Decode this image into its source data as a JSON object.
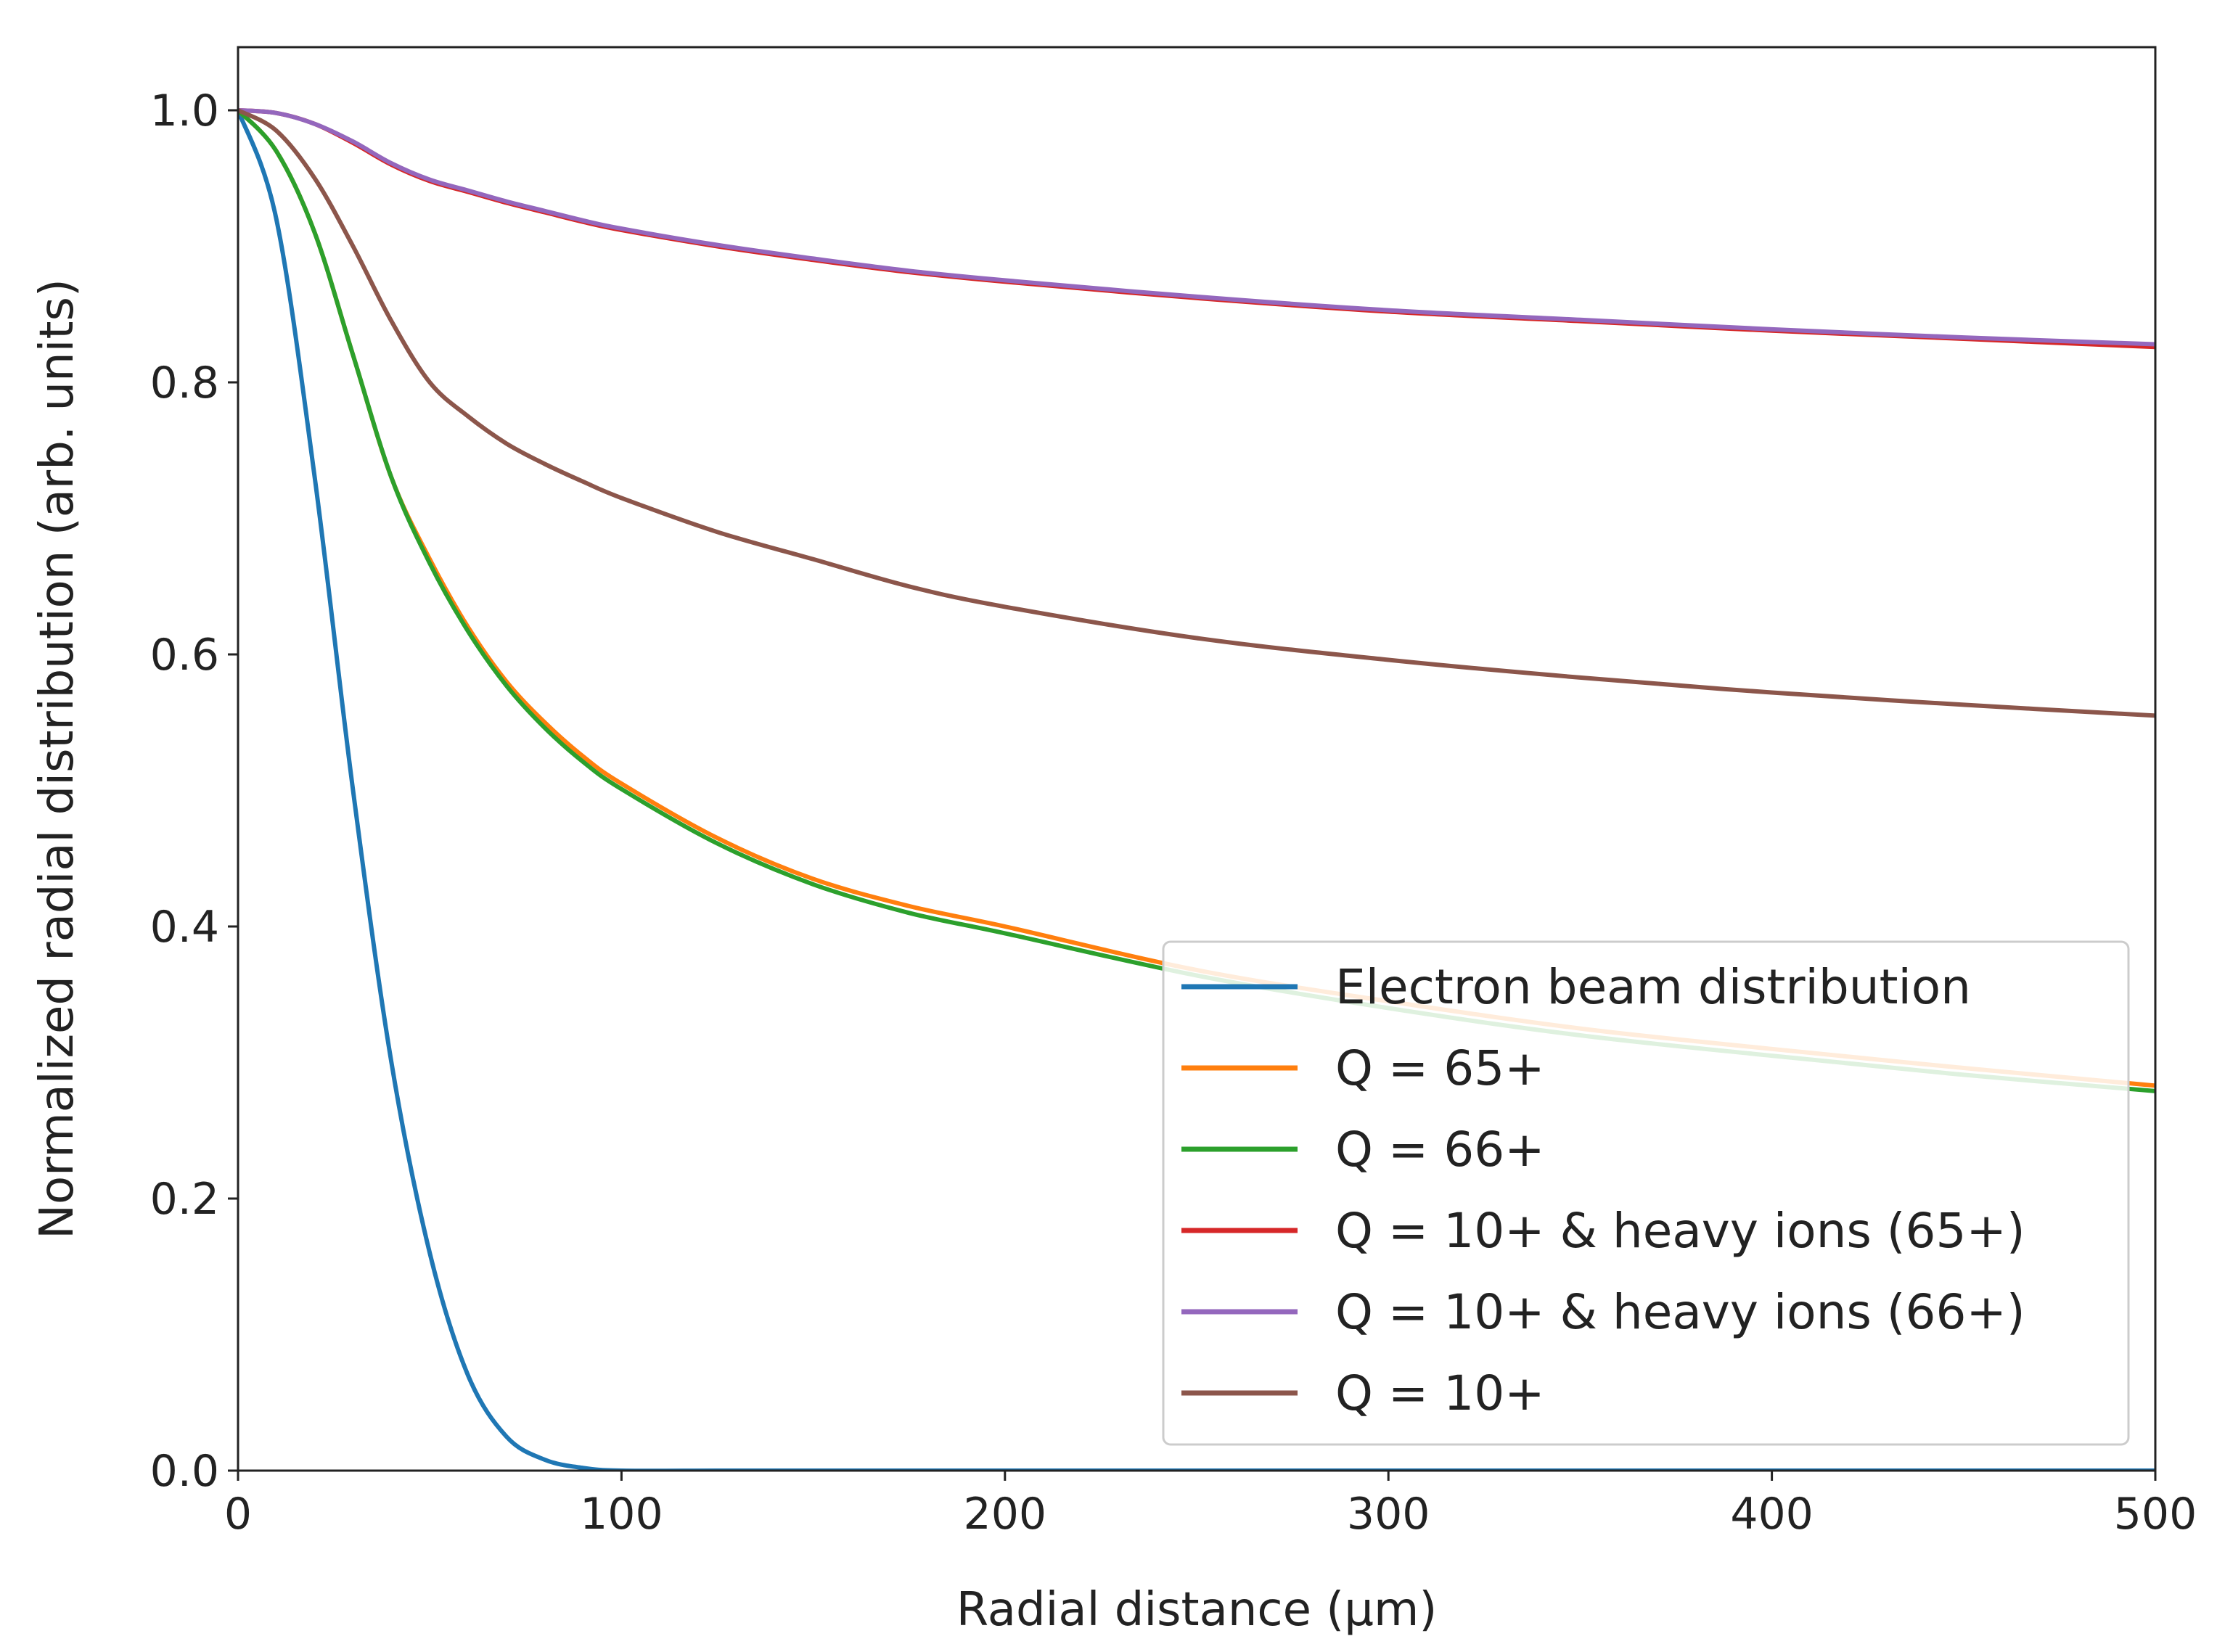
{
  "chart_data": {
    "type": "line",
    "title": "",
    "xlabel": "Radial distance (µm)",
    "ylabel": "Normalized radial distribution (arb. units)",
    "xlim": [
      0,
      500
    ],
    "ylim": [
      0.0,
      1.05
    ],
    "xticks": [
      0,
      100,
      200,
      300,
      400,
      500
    ],
    "xtick_labels": [
      "0",
      "100",
      "200",
      "300",
      "400",
      "500"
    ],
    "yticks": [
      0.0,
      0.2,
      0.4,
      0.6,
      0.8,
      1.0
    ],
    "ytick_labels": [
      "0.0",
      "0.2",
      "0.4",
      "0.6",
      "0.8",
      "1.0"
    ],
    "grid": false,
    "legend_position": "lower-right",
    "x": [
      0,
      10,
      20,
      30,
      40,
      50,
      60,
      70,
      80,
      90,
      100,
      125,
      150,
      175,
      200,
      250,
      300,
      350,
      400,
      450,
      500
    ],
    "series": [
      {
        "name": "Electron beam distribution",
        "color": "#1f77b4",
        "values": [
          1.0,
          0.92,
          0.73,
          0.5,
          0.3,
          0.16,
          0.07,
          0.025,
          0.008,
          0.002,
          0.0,
          0.0,
          0.0,
          0.0,
          0.0,
          0.0,
          0.0,
          0.0,
          0.0,
          0.0,
          0.0
        ]
      },
      {
        "name": "Q = 65+",
        "color": "#ff7f0e",
        "values": [
          1.0,
          0.97,
          0.91,
          0.82,
          0.73,
          0.67,
          0.62,
          0.58,
          0.55,
          0.525,
          0.505,
          0.465,
          0.435,
          0.415,
          0.4,
          0.368,
          0.345,
          0.325,
          0.31,
          0.296,
          0.283
        ]
      },
      {
        "name": "Q = 66+",
        "color": "#2ca02c",
        "values": [
          1.0,
          0.97,
          0.91,
          0.82,
          0.73,
          0.667,
          0.617,
          0.577,
          0.546,
          0.521,
          0.501,
          0.461,
          0.431,
          0.41,
          0.395,
          0.364,
          0.34,
          0.32,
          0.305,
          0.291,
          0.279
        ]
      },
      {
        "name": "Q = 10+ & heavy ions (65+)",
        "color": "#d62728",
        "values": [
          1.0,
          0.998,
          0.99,
          0.976,
          0.96,
          0.948,
          0.94,
          0.932,
          0.925,
          0.918,
          0.912,
          0.9,
          0.89,
          0.881,
          0.874,
          0.862,
          0.852,
          0.845,
          0.838,
          0.832,
          0.826
        ]
      },
      {
        "name": "Q = 10+ & heavy ions (66+)",
        "color": "#9467bd",
        "values": [
          1.0,
          0.998,
          0.99,
          0.977,
          0.961,
          0.949,
          0.941,
          0.933,
          0.926,
          0.919,
          0.913,
          0.901,
          0.891,
          0.882,
          0.875,
          0.863,
          0.853,
          0.846,
          0.839,
          0.833,
          0.828
        ]
      },
      {
        "name": "Q = 10+",
        "color": "#8c564b",
        "values": [
          1.0,
          0.985,
          0.95,
          0.9,
          0.845,
          0.8,
          0.775,
          0.755,
          0.74,
          0.727,
          0.715,
          0.69,
          0.67,
          0.65,
          0.635,
          0.612,
          0.596,
          0.583,
          0.572,
          0.563,
          0.555
        ]
      }
    ]
  }
}
